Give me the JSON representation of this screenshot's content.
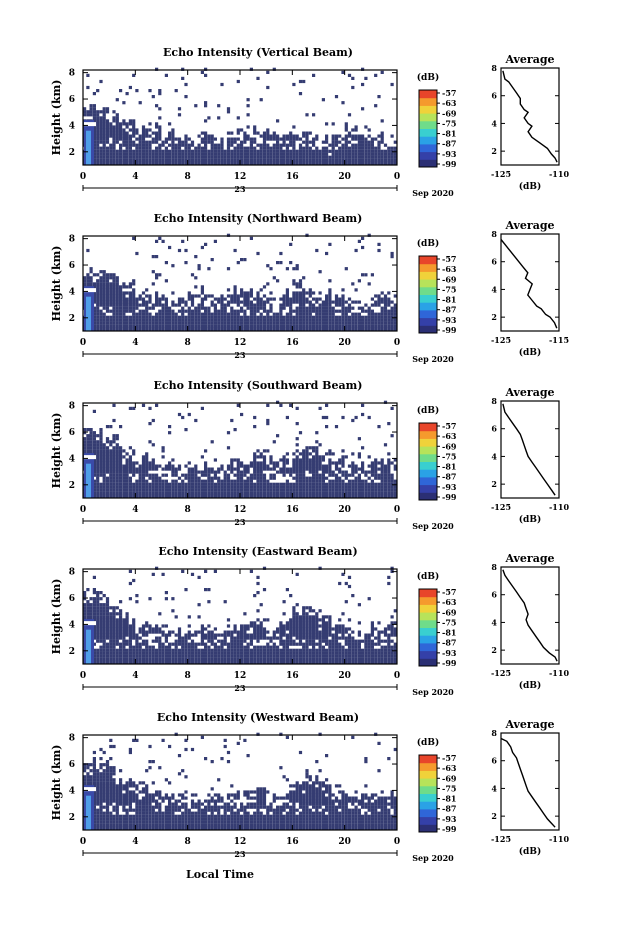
{
  "figure": {
    "xlabel": "Local Time",
    "date_label": "Sep 2020",
    "day_label": "23",
    "colorbar_unit": "(dB)",
    "colorbar_ticks": [
      "-57",
      "-63",
      "-69",
      "-75",
      "-81",
      "-87",
      "-93",
      "-99"
    ],
    "average_title": "Average",
    "average_xlabel": "(dB)"
  },
  "colors": {
    "background_fill": "#353c72",
    "colormap": [
      "#2b2f74",
      "#3440a8",
      "#2f66d8",
      "#2aa2e6",
      "#39cfd0",
      "#6fdc8a",
      "#b7e35a",
      "#f0d23a",
      "#f59a2d",
      "#e8452a"
    ],
    "cursor_band": "#4f9fe8"
  },
  "chart_data": [
    {
      "type": "heatmap",
      "title": "Echo Intensity (Vertical Beam)",
      "ylabel": "Height (km)",
      "xticks": [
        "0",
        "4",
        "8",
        "12",
        "16",
        "20",
        "0"
      ],
      "yticks": [
        "2",
        "4",
        "6",
        "8"
      ],
      "xlim": [
        0,
        24
      ],
      "ylim": [
        1,
        8.2
      ],
      "echo_top_km": [
        5.2,
        5.0,
        4.6,
        4.2,
        3.6,
        3.8,
        3.4,
        3.0,
        3.0,
        3.2,
        3.0,
        3.4,
        3.4,
        3.6,
        3.2,
        3.0,
        3.4,
        3.2,
        2.8,
        3.2,
        3.8,
        3.4,
        3.2,
        3.0
      ],
      "average_profile": {
        "xticks": [
          "-125",
          "-110"
        ],
        "xlim": [
          -125,
          -110
        ],
        "ylim": [
          1,
          8
        ],
        "x": [
          -124.5,
          -124,
          -123,
          -122,
          -121,
          -120,
          -120,
          -119,
          -118,
          -119,
          -118,
          -117,
          -118,
          -117,
          -116,
          -115,
          -114,
          -113,
          -112,
          -111,
          -110.5
        ],
        "y": [
          7.8,
          7.2,
          7.0,
          6.6,
          6.2,
          5.8,
          5.4,
          5.0,
          4.8,
          4.4,
          4.0,
          3.8,
          3.4,
          3.0,
          2.8,
          2.6,
          2.4,
          2.2,
          1.8,
          1.5,
          1.2
        ]
      }
    },
    {
      "type": "heatmap",
      "title": "Echo Intensity (Northward Beam)",
      "ylabel": "Height (km)",
      "xticks": [
        "0",
        "4",
        "8",
        "12",
        "16",
        "20",
        "0"
      ],
      "yticks": [
        "2",
        "4",
        "6",
        "8"
      ],
      "xlim": [
        0,
        24
      ],
      "ylim": [
        1,
        8.2
      ],
      "echo_top_km": [
        5.6,
        5.8,
        5.2,
        4.6,
        4.0,
        3.8,
        3.6,
        3.4,
        3.6,
        3.8,
        3.4,
        4.0,
        4.2,
        3.8,
        3.6,
        3.8,
        4.6,
        4.2,
        3.8,
        3.6,
        3.4,
        3.2,
        3.6,
        3.8
      ],
      "average_profile": {
        "xticks": [
          "-125",
          "-115"
        ],
        "xlim": [
          -125,
          -112
        ],
        "ylim": [
          1,
          8
        ],
        "x": [
          -125,
          -124,
          -123,
          -122,
          -121,
          -120,
          -119,
          -119.5,
          -118,
          -118.5,
          -119,
          -118,
          -117,
          -116,
          -115,
          -114,
          -113,
          -112.5
        ],
        "y": [
          7.6,
          7.2,
          6.8,
          6.4,
          6.0,
          5.6,
          5.2,
          4.8,
          4.4,
          4.0,
          3.6,
          3.2,
          2.8,
          2.6,
          2.2,
          2.0,
          1.6,
          1.2
        ]
      }
    },
    {
      "type": "heatmap",
      "title": "Echo Intensity (Southward Beam)",
      "ylabel": "Height (km)",
      "xticks": [
        "0",
        "4",
        "8",
        "12",
        "16",
        "20",
        "0"
      ],
      "yticks": [
        "2",
        "4",
        "6",
        "8"
      ],
      "xlim": [
        0,
        24
      ],
      "ylim": [
        1,
        8.2
      ],
      "echo_top_km": [
        6.4,
        6.0,
        5.6,
        4.6,
        4.2,
        3.8,
        3.6,
        3.2,
        3.4,
        3.6,
        3.2,
        3.8,
        3.6,
        4.4,
        3.8,
        4.0,
        4.8,
        5.0,
        4.4,
        3.8,
        3.6,
        3.4,
        3.8,
        3.6
      ],
      "average_profile": {
        "xticks": [
          "-125",
          "-110"
        ],
        "xlim": [
          -125,
          -110
        ],
        "ylim": [
          1,
          8
        ],
        "x": [
          -124.5,
          -124,
          -123,
          -122,
          -121,
          -120,
          -119.5,
          -119,
          -118.5,
          -118,
          -117,
          -116,
          -115,
          -114,
          -113,
          -112,
          -111
        ],
        "y": [
          7.8,
          7.2,
          6.8,
          6.4,
          6.0,
          5.6,
          5.2,
          4.8,
          4.4,
          4.0,
          3.6,
          3.2,
          2.8,
          2.4,
          2.0,
          1.6,
          1.2
        ]
      }
    },
    {
      "type": "heatmap",
      "title": "Echo Intensity (Eastward Beam)",
      "ylabel": "Height (km)",
      "xticks": [
        "0",
        "4",
        "8",
        "12",
        "16",
        "20",
        "0"
      ],
      "yticks": [
        "2",
        "4",
        "6",
        "8"
      ],
      "xlim": [
        0,
        24
      ],
      "ylim": [
        1,
        8.2
      ],
      "echo_top_km": [
        6.6,
        6.2,
        5.4,
        4.6,
        4.0,
        3.8,
        3.6,
        3.4,
        3.6,
        3.8,
        3.4,
        3.6,
        4.0,
        4.2,
        3.8,
        4.4,
        5.2,
        5.4,
        4.6,
        3.8,
        3.6,
        3.4,
        3.8,
        4.0
      ],
      "average_profile": {
        "xticks": [
          "-125",
          "-110"
        ],
        "xlim": [
          -125,
          -110
        ],
        "ylim": [
          1,
          8
        ],
        "x": [
          -124.5,
          -124,
          -123,
          -122,
          -121,
          -120,
          -119,
          -118.5,
          -118,
          -118.5,
          -118,
          -117,
          -116,
          -115,
          -114,
          -112.5,
          -111,
          -110.5
        ],
        "y": [
          7.8,
          7.4,
          7.0,
          6.6,
          6.2,
          5.8,
          5.4,
          5.0,
          4.6,
          4.2,
          3.8,
          3.4,
          3.0,
          2.6,
          2.2,
          1.8,
          1.5,
          1.2
        ]
      }
    },
    {
      "type": "heatmap",
      "title": "Echo Intensity (Westward Beam)",
      "ylabel": "Height (km)",
      "xticks": [
        "0",
        "4",
        "8",
        "12",
        "16",
        "20",
        "0"
      ],
      "yticks": [
        "2",
        "4",
        "6",
        "8"
      ],
      "xlim": [
        0,
        24
      ],
      "ylim": [
        1,
        8.2
      ],
      "echo_top_km": [
        6.2,
        6.0,
        5.6,
        4.6,
        4.2,
        3.8,
        3.6,
        3.4,
        3.4,
        3.6,
        3.4,
        3.8,
        4.0,
        4.2,
        3.6,
        3.8,
        4.6,
        5.2,
        4.6,
        3.8,
        3.6,
        3.4,
        3.6,
        3.8
      ],
      "average_profile": {
        "xticks": [
          "-125",
          "-110"
        ],
        "xlim": [
          -125,
          -110
        ],
        "ylim": [
          1,
          8
        ],
        "x": [
          -125,
          -123.5,
          -122.5,
          -122,
          -121,
          -120.5,
          -120,
          -119.5,
          -119,
          -118.5,
          -118,
          -117,
          -116,
          -115,
          -114,
          -113,
          -112,
          -111
        ],
        "y": [
          7.6,
          7.4,
          7.0,
          6.6,
          6.2,
          5.8,
          5.4,
          5.0,
          4.6,
          4.2,
          3.8,
          3.4,
          3.0,
          2.6,
          2.2,
          1.8,
          1.5,
          1.2
        ]
      }
    }
  ]
}
